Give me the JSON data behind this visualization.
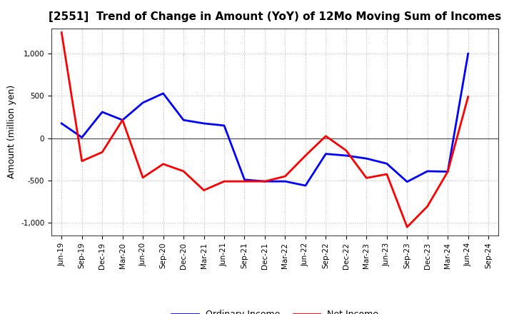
{
  "title": "[2551]  Trend of Change in Amount (YoY) of 12Mo Moving Sum of Incomes",
  "ylabel": "Amount (million yen)",
  "x_labels": [
    "Jun-19",
    "Sep-19",
    "Dec-19",
    "Mar-20",
    "Jun-20",
    "Sep-20",
    "Dec-20",
    "Mar-21",
    "Jun-21",
    "Sep-21",
    "Dec-21",
    "Mar-22",
    "Jun-22",
    "Sep-22",
    "Dec-22",
    "Mar-23",
    "Jun-23",
    "Sep-23",
    "Dec-23",
    "Mar-24",
    "Jun-24",
    "Sep-24"
  ],
  "ordinary_income": [
    175,
    10,
    310,
    215,
    420,
    530,
    215,
    175,
    150,
    -490,
    -510,
    -510,
    -560,
    -185,
    -205,
    -240,
    -300,
    -515,
    -390,
    -395,
    1000,
    null
  ],
  "net_income": [
    1250,
    -270,
    -165,
    215,
    -465,
    -305,
    -390,
    -615,
    -510,
    -510,
    -510,
    -450,
    -205,
    25,
    -145,
    -470,
    -425,
    -1050,
    -805,
    -395,
    490,
    null
  ],
  "ordinary_color": "#0000ff",
  "net_color": "#ff0000",
  "ylim": [
    -1150,
    1300
  ],
  "yticks": [
    -1000,
    -500,
    0,
    500,
    1000
  ],
  "background_color": "#ffffff",
  "plot_bg_color": "#ffffff",
  "grid_color": "#bbbbbb",
  "title_fontsize": 11,
  "label_fontsize": 9,
  "tick_fontsize": 7.5,
  "legend_fontsize": 9,
  "linewidth": 2.0
}
